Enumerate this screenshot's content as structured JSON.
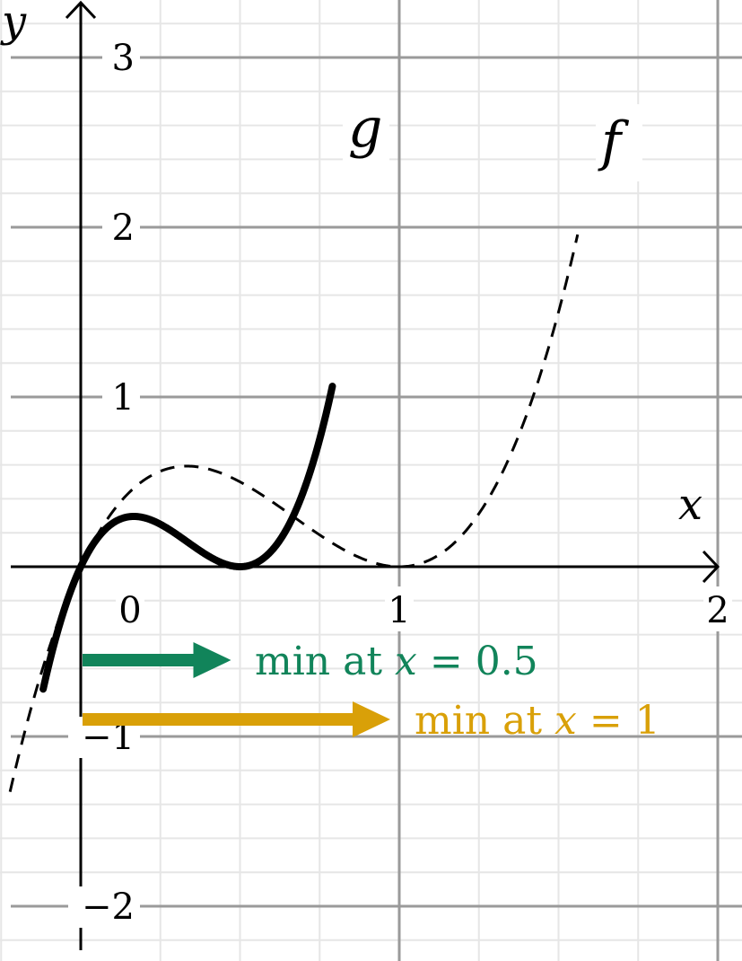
{
  "chart_data": {
    "type": "line",
    "title": "",
    "xlabel": "x",
    "ylabel": "y",
    "xlim": [
      -0.3,
      2
    ],
    "ylim": [
      -2.25,
      3.3
    ],
    "x_ticks": [
      {
        "value": 0,
        "label": "0"
      },
      {
        "value": 1,
        "label": "1"
      },
      {
        "value": 2,
        "label": "2"
      }
    ],
    "y_ticks": [
      {
        "value": -2,
        "label": "−2"
      },
      {
        "value": -1,
        "label": "−1"
      },
      {
        "value": 1,
        "label": "1"
      },
      {
        "value": 2,
        "label": "2"
      },
      {
        "value": 3,
        "label": "3"
      }
    ],
    "grid": true,
    "series": [
      {
        "name": "f",
        "style": "dashed",
        "formula": "4x(x-1)^2",
        "minimum_x": 1,
        "maximum_x": 0.333
      },
      {
        "name": "g",
        "style": "solid",
        "formula": "16x(x-0.5)^2",
        "minimum_x": 0.5,
        "maximum_x": 0.167
      }
    ],
    "annotations": [
      {
        "text_prefix": "min at ",
        "variable": "x",
        "text_suffix": " = 0.5",
        "color": "#11845a",
        "arrow_from_x": 0,
        "arrow_to_x": 0.5
      },
      {
        "text_prefix": "min at ",
        "variable": "x",
        "text_suffix": " = 1",
        "color": "#d9a008",
        "arrow_from_x": 0,
        "arrow_to_x": 1
      }
    ]
  }
}
